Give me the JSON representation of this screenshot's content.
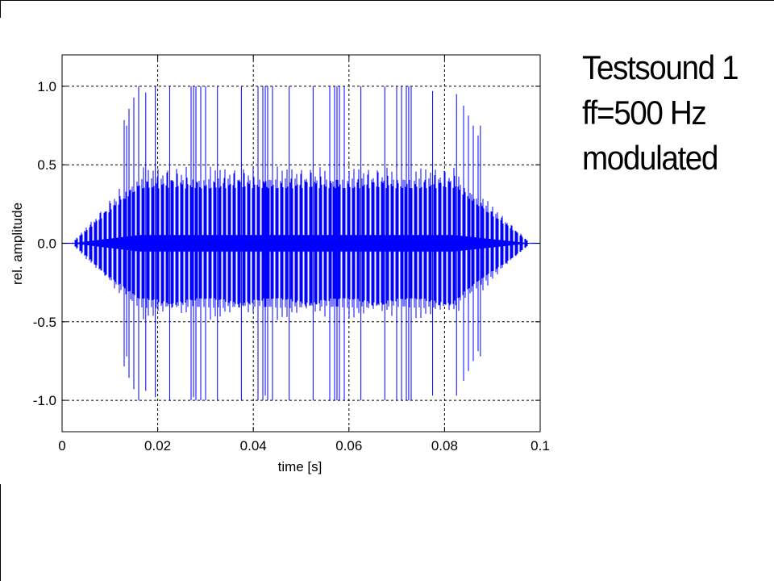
{
  "side_title": {
    "line1": "Testsound 1",
    "line2": "ff=500 Hz",
    "line3": "modulated"
  },
  "colors": {
    "signal": "#0000ff",
    "axes": "#000000",
    "grid": "#000000"
  },
  "chart_data": {
    "type": "line",
    "title": "",
    "xlabel": "time [s]",
    "ylabel": "rel. amplitude",
    "xlim": [
      0,
      0.1
    ],
    "ylim": [
      -1.2,
      1.2
    ],
    "xticks": [
      0,
      0.02,
      0.04,
      0.06,
      0.08,
      0.1
    ],
    "xtick_labels": [
      "0",
      "0.02",
      "0.04",
      "0.06",
      "0.08",
      "0.1"
    ],
    "yticks": [
      1.0,
      0.5,
      0.0,
      -0.5,
      -1.0
    ],
    "ytick_labels": [
      "1.0",
      "0.5",
      "0.0",
      "-0.5",
      "-1.0"
    ],
    "grid": true,
    "grid_style": "dashed",
    "series": [
      {
        "description_of_shape": "",
        "fundamental_frequency_hz": 500,
        "duration_s": 0.1,
        "envelope": {
          "rise_end_s": 0.016,
          "decay_start_s": 0.082,
          "onset_s": 0.002,
          "offset_s": 0.098,
          "peak_amplitude": 1.0,
          "plateau_level": 0.35
        },
        "peak_values": [
          {
            "t": 0.0135,
            "max": 0.75,
            "min": -0.72
          },
          {
            "t": 0.0175,
            "max": 0.96,
            "min": -0.94
          },
          {
            "t": 0.0195,
            "max": 1.0,
            "min": -0.98
          },
          {
            "t": 0.0225,
            "max": 1.0,
            "min": -1.0
          },
          {
            "t": 0.0275,
            "max": 1.0,
            "min": -0.98
          },
          {
            "t": 0.0325,
            "max": 1.0,
            "min": -1.0
          },
          {
            "t": 0.0375,
            "max": 1.0,
            "min": -1.0
          },
          {
            "t": 0.0425,
            "max": 1.0,
            "min": -0.97
          },
          {
            "t": 0.0475,
            "max": 1.0,
            "min": -1.0
          },
          {
            "t": 0.0525,
            "max": 1.0,
            "min": -1.0
          },
          {
            "t": 0.0575,
            "max": 1.0,
            "min": -1.0
          },
          {
            "t": 0.0625,
            "max": 1.0,
            "min": -1.0
          },
          {
            "t": 0.0675,
            "max": 1.0,
            "min": -1.0
          },
          {
            "t": 0.0725,
            "max": 1.0,
            "min": -1.0
          },
          {
            "t": 0.0775,
            "max": 0.97,
            "min": -0.97
          },
          {
            "t": 0.0825,
            "max": 0.95,
            "min": -0.97
          },
          {
            "t": 0.0875,
            "max": 0.75,
            "min": -0.72
          }
        ]
      }
    ]
  }
}
